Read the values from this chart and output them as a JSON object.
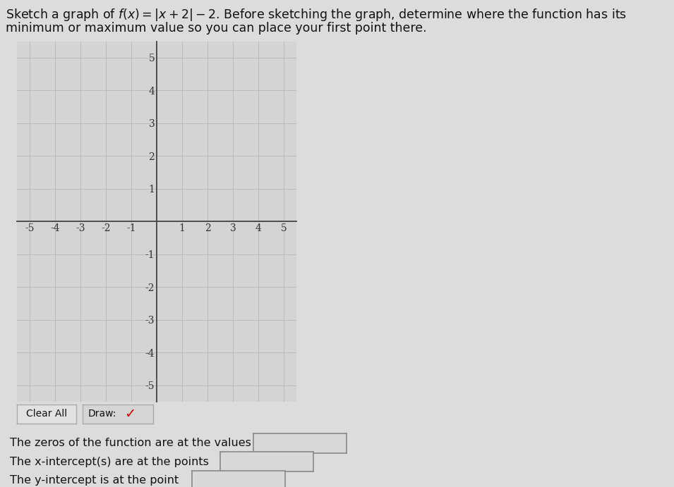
{
  "title_line1": "Sketch a graph of $f(x) = |x + 2| - 2$. Before sketching the graph, determine where the function has its",
  "title_line2": "minimum or maximum value so you can place your first point there.",
  "xlim": [
    -5.5,
    5.5
  ],
  "ylim": [
    -5.5,
    5.5
  ],
  "xticks": [
    -5,
    -4,
    -3,
    -2,
    -1,
    1,
    2,
    3,
    4,
    5
  ],
  "yticks": [
    -5,
    -4,
    -3,
    -2,
    -1,
    1,
    2,
    3,
    4,
    5
  ],
  "grid_color": "#bbbbbb",
  "axis_color": "#444444",
  "tick_label_color": "#333333",
  "label1": "The zeros of the function are at the values",
  "label2": "The x-intercept(s) are at the points",
  "label3": "The y-intercept is at the point",
  "button1_text": "Clear All",
  "button2_text": "Draw:",
  "graph_bg": "#d4d4d4",
  "page_bg": "#dcdcdc",
  "font_size_title": 12.5,
  "font_size_labels": 11.5,
  "font_size_ticks": 10,
  "checkmark_color": "#cc0000"
}
